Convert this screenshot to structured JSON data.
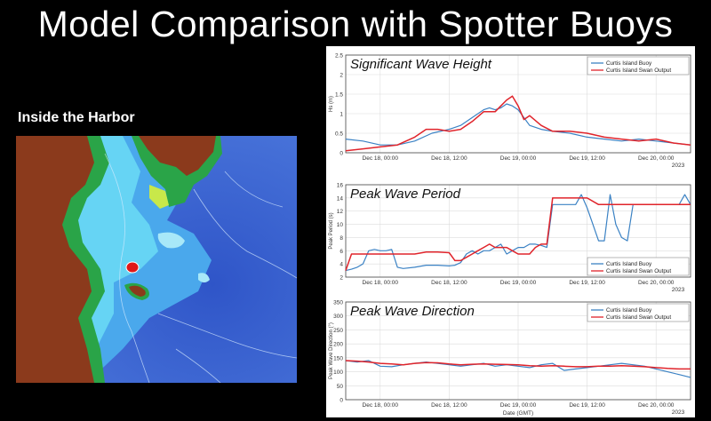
{
  "page": {
    "title": "Model Comparison with Spotter Buoys",
    "subtitle": "Inside the Harbor"
  },
  "colors": {
    "buoy": "#3b82c4",
    "swan": "#e0242b",
    "land": "#8b3a1c",
    "deep_water": "#3a5fd0",
    "shallow_water": "#5ad0f0",
    "shore": "#1e8a2e",
    "marker": "#e01818"
  },
  "chart_data": [
    {
      "type": "line",
      "title": "Significant Wave Height",
      "ylabel": "Hs (m)",
      "ylim": [
        0,
        2.5
      ],
      "yticks": [
        0,
        0.5,
        1,
        1.5,
        2,
        2.5
      ],
      "xlim": [
        -6,
        54
      ],
      "xticks": [
        0,
        12,
        24,
        36,
        48
      ],
      "xticklabels": [
        "Dec 18, 00:00",
        "Dec 18, 12:00",
        "Dec 19, 00:00",
        "Dec 19, 12:00",
        "Dec 20, 00:00"
      ],
      "year_label": "2023",
      "legend": [
        "Curtis Island Buoy",
        "Curtis Island Swan Output"
      ],
      "legend_position": "top-right",
      "series": [
        {
          "name": "Curtis Island Buoy",
          "x": [
            -6,
            -3,
            0,
            3,
            6,
            9,
            12,
            14,
            16,
            18,
            19,
            20,
            21,
            22,
            23,
            24,
            25,
            26,
            28,
            30,
            33,
            36,
            39,
            42,
            45,
            48,
            51,
            54
          ],
          "y": [
            0.35,
            0.3,
            0.2,
            0.2,
            0.3,
            0.5,
            0.6,
            0.7,
            0.9,
            1.1,
            1.15,
            1.1,
            1.15,
            1.25,
            1.2,
            1.1,
            0.9,
            0.7,
            0.6,
            0.55,
            0.5,
            0.4,
            0.35,
            0.3,
            0.35,
            0.3,
            0.25,
            0.2
          ]
        },
        {
          "name": "Curtis Island Swan Output",
          "x": [
            -6,
            -3,
            0,
            3,
            6,
            8,
            10,
            12,
            14,
            16,
            18,
            20,
            21,
            22,
            23,
            24,
            25,
            26,
            28,
            30,
            33,
            36,
            39,
            42,
            45,
            48,
            51,
            54
          ],
          "y": [
            0.05,
            0.1,
            0.15,
            0.2,
            0.4,
            0.6,
            0.6,
            0.55,
            0.6,
            0.8,
            1.05,
            1.05,
            1.2,
            1.35,
            1.45,
            1.2,
            0.85,
            0.95,
            0.7,
            0.55,
            0.55,
            0.5,
            0.4,
            0.35,
            0.3,
            0.35,
            0.25,
            0.2
          ]
        }
      ]
    },
    {
      "type": "line",
      "title": "Peak Wave Period",
      "ylabel": "Peak Period (s)",
      "ylim": [
        2,
        16
      ],
      "yticks": [
        2,
        4,
        6,
        8,
        10,
        12,
        14,
        16
      ],
      "xlim": [
        -6,
        54
      ],
      "xticks": [
        0,
        12,
        24,
        36,
        48
      ],
      "xticklabels": [
        "Dec 18, 00:00",
        "Dec 18, 12:00",
        "Dec 19, 00:00",
        "Dec 19, 12:00",
        "Dec 20, 00:00"
      ],
      "year_label": "2023",
      "legend": [
        "Curtis Island Buoy",
        "Curtis Island Swan Output"
      ],
      "legend_position": "bottom-right",
      "series": [
        {
          "name": "Curtis Island Buoy",
          "x": [
            -6,
            -5,
            -4,
            -3,
            -2,
            -1,
            0,
            1,
            2,
            3,
            4,
            6,
            8,
            10,
            12,
            13,
            14,
            15,
            16,
            17,
            18,
            19,
            20,
            21,
            22,
            23,
            24,
            25,
            26,
            27,
            28,
            29,
            30,
            32,
            33,
            34,
            35,
            36,
            37,
            38,
            39,
            40,
            41,
            42,
            43,
            44,
            45,
            46,
            47,
            48,
            50,
            52,
            53,
            54
          ],
          "y": [
            3,
            3.2,
            3.5,
            4,
            6,
            6.2,
            6,
            6,
            6.2,
            3.5,
            3.3,
            3.5,
            3.8,
            3.8,
            3.7,
            3.8,
            4.2,
            5.5,
            6,
            5.5,
            6,
            6,
            6.5,
            7,
            5.5,
            6,
            6.5,
            6.5,
            7,
            7,
            6.8,
            6.5,
            13,
            13,
            13,
            13,
            14.5,
            12.5,
            10,
            7.5,
            7.5,
            14.5,
            10,
            8,
            7.5,
            13,
            13,
            13,
            13,
            13,
            13,
            13,
            14.5,
            13
          ]
        },
        {
          "name": "Curtis Island Swan Output",
          "x": [
            -6,
            -5,
            -4,
            -3,
            -2,
            -1,
            0,
            1,
            2,
            4,
            6,
            8,
            10,
            12,
            13,
            14,
            15,
            16,
            17,
            18,
            19,
            20,
            21,
            22,
            23,
            24,
            25,
            26,
            27,
            28,
            29,
            30,
            31,
            32,
            33,
            34,
            35,
            36,
            38,
            40,
            42,
            44,
            46,
            48,
            50,
            52,
            54
          ],
          "y": [
            3,
            5.5,
            5.5,
            5.5,
            5.5,
            5.5,
            5.5,
            5.5,
            5.5,
            5.5,
            5.5,
            5.8,
            5.8,
            5.7,
            4.5,
            4.5,
            5,
            5.5,
            6,
            6.5,
            7,
            6.5,
            6.5,
            6.5,
            6,
            5.5,
            5.5,
            5.5,
            6.5,
            7,
            7,
            14,
            14,
            14,
            14,
            14,
            14,
            14,
            13,
            13,
            13,
            13,
            13,
            13,
            13,
            13,
            13
          ]
        }
      ]
    },
    {
      "type": "line",
      "title": "Peak Wave Direction",
      "ylabel": "Peak Wave Direction (°)",
      "xlabel": "Date (GMT)",
      "ylim": [
        0,
        350
      ],
      "yticks": [
        0,
        50,
        100,
        150,
        200,
        250,
        300,
        350
      ],
      "xlim": [
        -6,
        54
      ],
      "xticks": [
        0,
        12,
        24,
        36,
        48
      ],
      "xticklabels": [
        "Dec 18, 00:00",
        "Dec 18, 12:00",
        "Dec 19, 00:00",
        "Dec 19, 12:00",
        "Dec 20, 00:00"
      ],
      "year_label": "2023",
      "legend": [
        "Curtis Island Buoy",
        "Curtis Island Swan Output"
      ],
      "legend_position": "top-right",
      "series": [
        {
          "name": "Curtis Island Buoy",
          "x": [
            -6,
            -4,
            -2,
            0,
            2,
            4,
            6,
            8,
            10,
            12,
            14,
            16,
            18,
            20,
            22,
            24,
            26,
            28,
            30,
            32,
            34,
            36,
            38,
            40,
            42,
            44,
            46,
            48,
            50,
            52,
            54
          ],
          "y": [
            140,
            135,
            140,
            120,
            118,
            125,
            130,
            135,
            130,
            125,
            120,
            125,
            130,
            120,
            125,
            120,
            115,
            125,
            130,
            105,
            110,
            115,
            120,
            125,
            130,
            125,
            120,
            110,
            100,
            90,
            80
          ]
        },
        {
          "name": "Curtis Island Swan Output",
          "x": [
            -6,
            -4,
            -2,
            0,
            2,
            4,
            6,
            8,
            10,
            12,
            14,
            16,
            18,
            20,
            22,
            24,
            26,
            28,
            30,
            32,
            34,
            36,
            38,
            40,
            42,
            44,
            46,
            48,
            50,
            52,
            54
          ],
          "y": [
            140,
            138,
            135,
            130,
            128,
            125,
            130,
            133,
            132,
            128,
            125,
            127,
            128,
            127,
            126,
            125,
            122,
            120,
            122,
            120,
            118,
            118,
            120,
            120,
            122,
            120,
            118,
            115,
            112,
            110,
            110
          ]
        }
      ]
    }
  ]
}
